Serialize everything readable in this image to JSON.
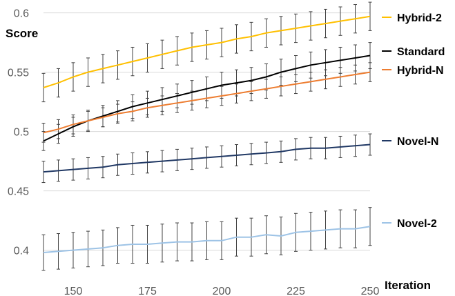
{
  "chart_data": {
    "type": "line",
    "title": "",
    "xlabel": "Iteration",
    "ylabel": "Score",
    "xlim": [
      140,
      250
    ],
    "ylim": [
      0.38,
      0.605
    ],
    "xticks": [
      150,
      175,
      200,
      225,
      250
    ],
    "yticks": [
      0.4,
      0.45,
      0.5,
      0.55,
      0.6
    ],
    "ytick_labels": [
      "0.4",
      "0.45",
      "0.5",
      "0.55",
      "0.6"
    ],
    "grid": "horizontal",
    "legend": "right",
    "error_bars": true,
    "x": [
      140,
      145,
      150,
      155,
      160,
      165,
      170,
      175,
      180,
      185,
      190,
      195,
      200,
      205,
      210,
      215,
      220,
      225,
      230,
      235,
      240,
      245,
      250
    ],
    "series": [
      {
        "name": "Hybrid-2",
        "color": "#FFC000",
        "values": [
          0.537,
          0.541,
          0.546,
          0.55,
          0.553,
          0.556,
          0.559,
          0.562,
          0.565,
          0.568,
          0.571,
          0.573,
          0.575,
          0.578,
          0.58,
          0.583,
          0.585,
          0.587,
          0.589,
          0.591,
          0.593,
          0.595,
          0.597
        ],
        "error": [
          0.012,
          0.012,
          0.012,
          0.012,
          0.012,
          0.012,
          0.012,
          0.012,
          0.012,
          0.012,
          0.012,
          0.012,
          0.012,
          0.012,
          0.012,
          0.012,
          0.012,
          0.012,
          0.012,
          0.012,
          0.012,
          0.012,
          0.012
        ]
      },
      {
        "name": "Standard",
        "color": "#000000",
        "values": [
          0.492,
          0.498,
          0.504,
          0.509,
          0.513,
          0.517,
          0.521,
          0.524,
          0.527,
          0.53,
          0.533,
          0.536,
          0.539,
          0.541,
          0.543,
          0.546,
          0.55,
          0.553,
          0.556,
          0.558,
          0.56,
          0.562,
          0.564
        ],
        "error": [
          0.008,
          0.008,
          0.008,
          0.009,
          0.009,
          0.009,
          0.01,
          0.01,
          0.01,
          0.01,
          0.01,
          0.01,
          0.011,
          0.011,
          0.011,
          0.011,
          0.011,
          0.011,
          0.011,
          0.011,
          0.011,
          0.011,
          0.011
        ]
      },
      {
        "name": "Hybrid-N",
        "color": "#ED7D31",
        "values": [
          0.499,
          0.502,
          0.506,
          0.509,
          0.512,
          0.515,
          0.517,
          0.52,
          0.522,
          0.524,
          0.526,
          0.528,
          0.53,
          0.532,
          0.534,
          0.536,
          0.538,
          0.54,
          0.542,
          0.544,
          0.546,
          0.548,
          0.55
        ],
        "error": [
          0.008,
          0.008,
          0.008,
          0.008,
          0.008,
          0.008,
          0.008,
          0.008,
          0.008,
          0.008,
          0.008,
          0.008,
          0.008,
          0.008,
          0.008,
          0.008,
          0.008,
          0.008,
          0.008,
          0.008,
          0.008,
          0.008,
          0.008
        ]
      },
      {
        "name": "Novel-N",
        "color": "#203864",
        "values": [
          0.466,
          0.467,
          0.468,
          0.469,
          0.47,
          0.472,
          0.473,
          0.474,
          0.475,
          0.476,
          0.477,
          0.478,
          0.479,
          0.48,
          0.481,
          0.482,
          0.483,
          0.485,
          0.486,
          0.486,
          0.487,
          0.488,
          0.489
        ],
        "error": [
          0.009,
          0.009,
          0.009,
          0.009,
          0.009,
          0.009,
          0.009,
          0.009,
          0.009,
          0.009,
          0.009,
          0.009,
          0.009,
          0.009,
          0.009,
          0.009,
          0.009,
          0.009,
          0.009,
          0.009,
          0.009,
          0.009,
          0.009
        ]
      },
      {
        "name": "Novel-2",
        "color": "#9DC3E6",
        "values": [
          0.398,
          0.399,
          0.4,
          0.401,
          0.402,
          0.404,
          0.405,
          0.405,
          0.406,
          0.407,
          0.407,
          0.408,
          0.408,
          0.411,
          0.411,
          0.413,
          0.412,
          0.415,
          0.416,
          0.417,
          0.418,
          0.418,
          0.42
        ],
        "error": [
          0.015,
          0.015,
          0.015,
          0.015,
          0.015,
          0.015,
          0.016,
          0.016,
          0.016,
          0.016,
          0.016,
          0.016,
          0.016,
          0.016,
          0.016,
          0.016,
          0.016,
          0.016,
          0.016,
          0.016,
          0.016,
          0.016,
          0.016
        ]
      }
    ]
  }
}
